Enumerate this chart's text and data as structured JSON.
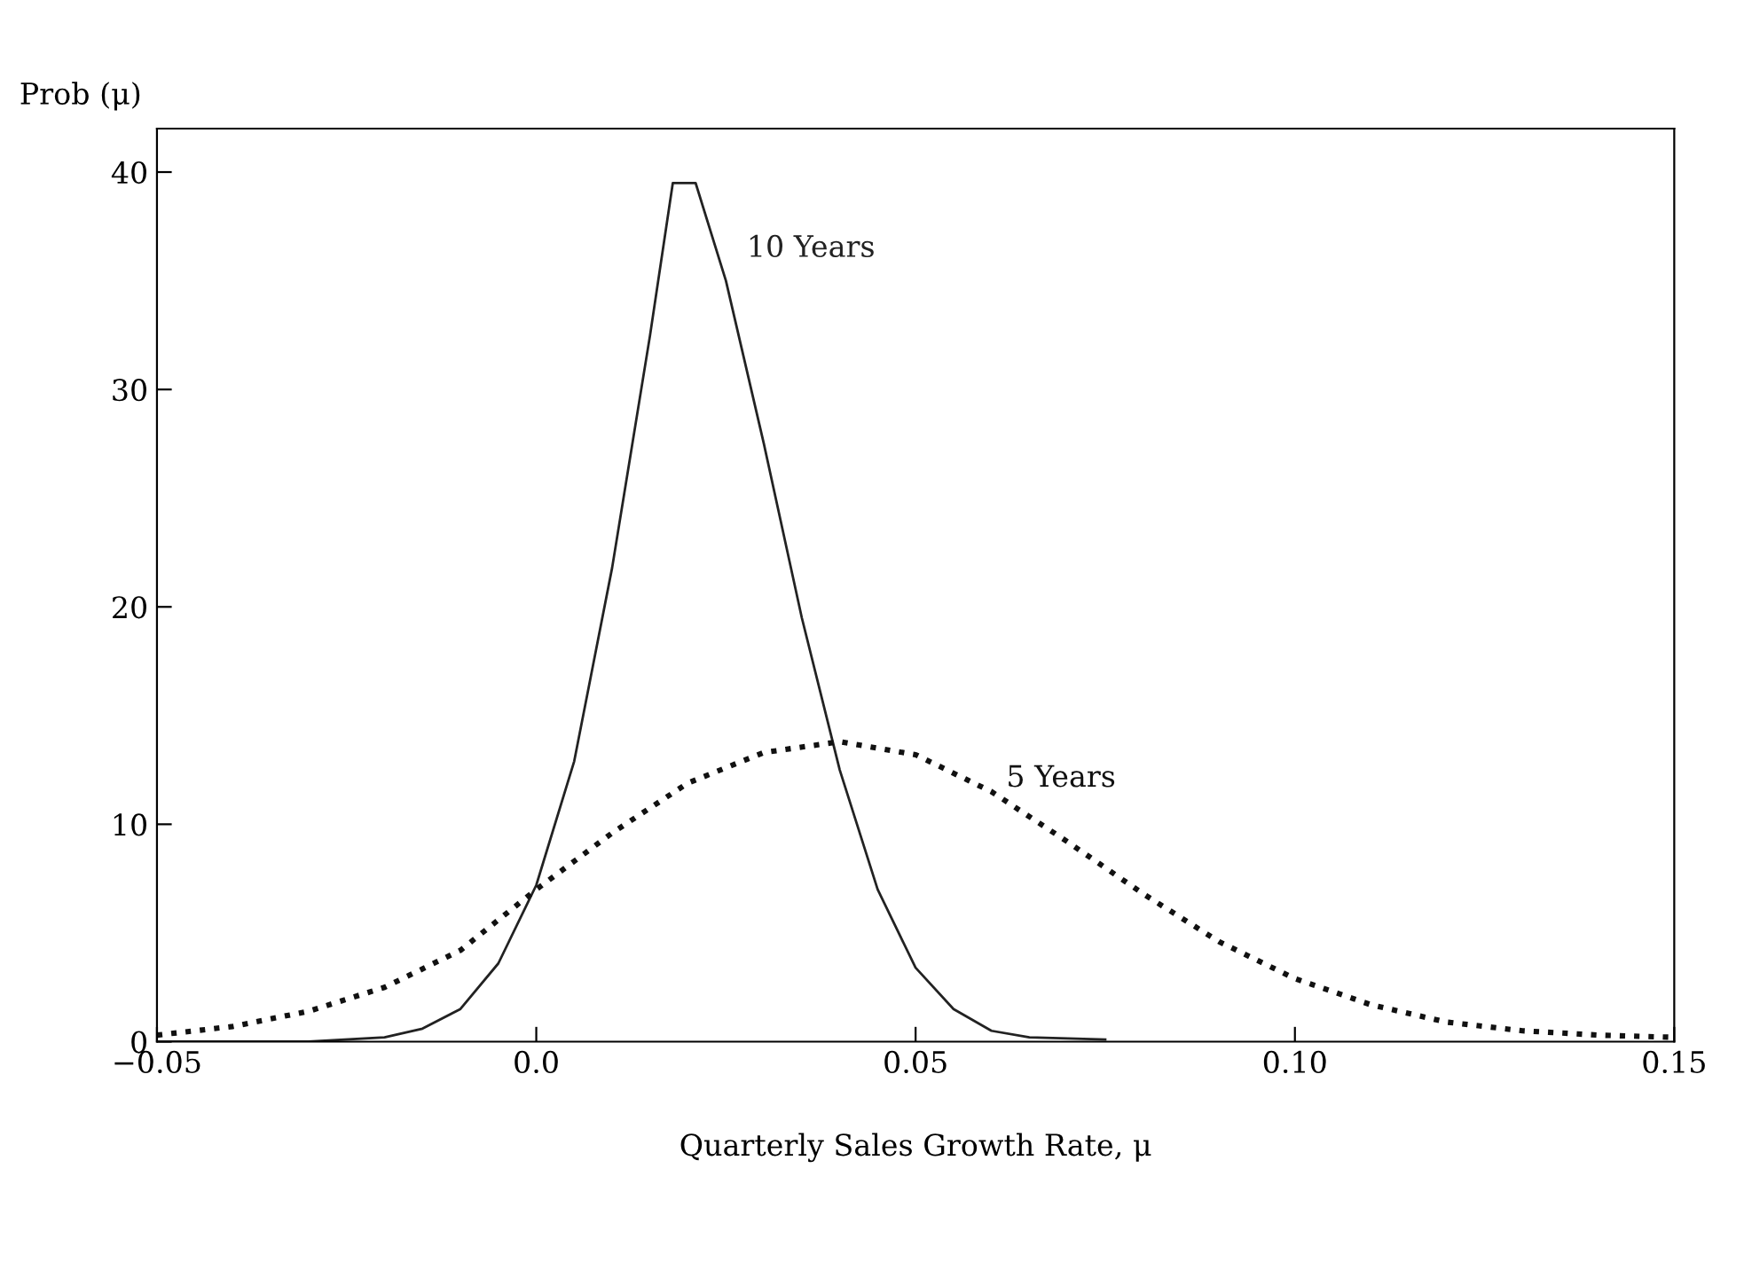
{
  "chart_data": {
    "type": "line",
    "ylabel": "Prob (μ)",
    "xlabel": "Quarterly Sales Growth Rate, μ",
    "xlim": [
      -0.05,
      0.15
    ],
    "xticks": [
      {
        "value": -0.05,
        "label": "−0.05"
      },
      {
        "value": 0.0,
        "label": "0.0"
      },
      {
        "value": 0.05,
        "label": "0.05"
      },
      {
        "value": 0.1,
        "label": "0.10"
      },
      {
        "value": 0.15,
        "label": "0.15"
      }
    ],
    "ylim": [
      0,
      42
    ],
    "yticks": [
      0,
      10,
      20,
      30,
      40
    ],
    "grid": false,
    "legend": false,
    "series": [
      {
        "name": "10 Years",
        "color": "#222222",
        "line_style": "solid",
        "x": [
          -0.05,
          -0.03,
          -0.02,
          -0.015,
          -0.01,
          -0.005,
          0.0,
          0.005,
          0.01,
          0.015,
          0.018,
          0.021,
          0.025,
          0.03,
          0.035,
          0.04,
          0.045,
          0.05,
          0.055,
          0.06,
          0.065,
          0.075
        ],
        "values": [
          0,
          0,
          0.2,
          0.6,
          1.5,
          3.6,
          7.2,
          12.9,
          21.8,
          32.5,
          39.5,
          39.5,
          35,
          27.5,
          19.5,
          12.5,
          7.0,
          3.4,
          1.5,
          0.5,
          0.2,
          0.1
        ]
      },
      {
        "name": "5 Years",
        "color": "#111111",
        "line_style": "dotted",
        "x": [
          -0.05,
          -0.04,
          -0.03,
          -0.02,
          -0.01,
          0.0,
          0.01,
          0.02,
          0.03,
          0.04,
          0.05,
          0.06,
          0.07,
          0.08,
          0.09,
          0.1,
          0.11,
          0.12,
          0.13,
          0.14,
          0.15
        ],
        "values": [
          0.3,
          0.7,
          1.4,
          2.5,
          4.2,
          7.0,
          9.6,
          11.9,
          13.3,
          13.8,
          13.2,
          11.5,
          9.2,
          6.8,
          4.6,
          2.9,
          1.7,
          0.9,
          0.5,
          0.3,
          0.2
        ]
      }
    ]
  }
}
